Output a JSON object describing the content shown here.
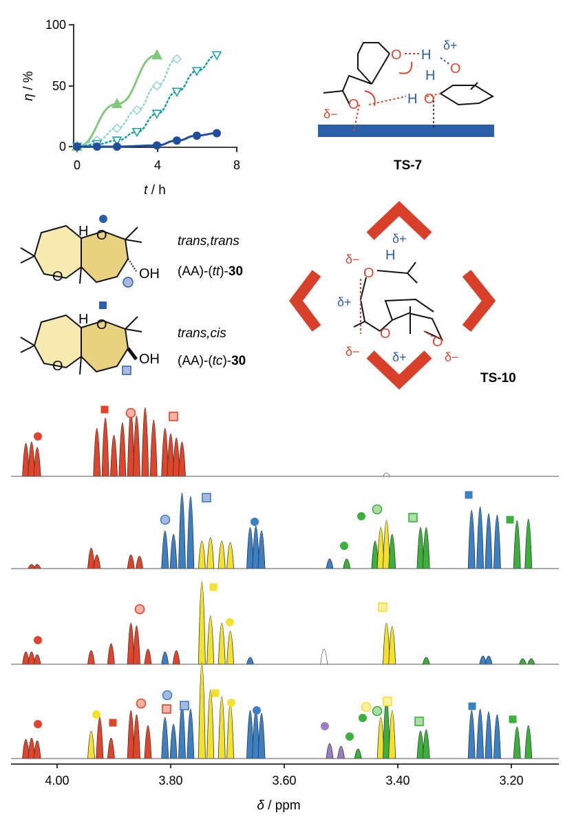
{
  "kinetics_chart": {
    "type": "line",
    "ylabel_sym": "η",
    "ylabel_unit": " / %",
    "xlabel_sym": "t",
    "xlabel_unit": " / h",
    "xticks": [
      "0",
      "4",
      "8"
    ],
    "yticks": [
      "0",
      "50",
      "100"
    ],
    "xlim": [
      0,
      8
    ],
    "ylim": [
      0,
      100
    ],
    "series": [
      {
        "marker": "triangle-up",
        "color": "#7ec97a",
        "style": "solid",
        "x": [
          0,
          2,
          4
        ],
        "y": [
          0,
          35,
          75
        ],
        "fit_end_x": 4
      },
      {
        "marker": "diamond-open",
        "color": "#8fd6cf",
        "style": "dotted",
        "x": [
          0,
          1,
          2,
          3,
          4,
          5
        ],
        "y": [
          0,
          5,
          15,
          30,
          50,
          72
        ],
        "fit_end_x": 5
      },
      {
        "marker": "triangle-down-open",
        "color": "#17a0a6",
        "style": "dotted",
        "x": [
          0,
          1,
          2,
          3,
          4,
          5,
          6,
          7
        ],
        "y": [
          0,
          2,
          5,
          12,
          27,
          45,
          62,
          75
        ],
        "fit_end_x": 7
      },
      {
        "marker": "circle-filled",
        "color": "#1f4e9c",
        "style": "solid",
        "x": [
          0,
          1,
          2,
          4,
          5,
          6,
          7
        ],
        "y": [
          0,
          0,
          0,
          1,
          5,
          9,
          11
        ],
        "fit_end_x": 7
      }
    ]
  },
  "ts7": {
    "label": "TS-7",
    "atoms": {
      "o": "O",
      "h": "H"
    },
    "charges": {
      "plus": "δ+",
      "minus": "δ−"
    }
  },
  "compounds": [
    {
      "stereo": "trans,trans",
      "code_pre": "(AA)-(",
      "code_it": "tt",
      "code_post": ")-",
      "number": "30",
      "oh": "OH",
      "o": "O",
      "h": "H"
    },
    {
      "stereo": "trans,cis",
      "code_pre": "(AA)-(",
      "code_it": "tc",
      "code_post": ")-",
      "number": "30",
      "oh": "OH",
      "o": "O",
      "h": "H"
    }
  ],
  "ts10": {
    "label": "TS-10",
    "atoms": {
      "o": "O",
      "h": "H"
    },
    "charges": {
      "plus": "δ+",
      "minus": "δ−"
    }
  },
  "nmr": {
    "xticks": [
      "4.00",
      "3.80",
      "3.60",
      "3.40",
      "3.20"
    ],
    "xlabel_sym": "δ",
    "xlabel_unit": " / ppm",
    "colors": {
      "red": "#e0452b",
      "blue": "#3b7fc4",
      "yellow": "#f4e12c",
      "green": "#3bb03a",
      "purple": "#9a7cc4",
      "line": "#555555"
    }
  }
}
